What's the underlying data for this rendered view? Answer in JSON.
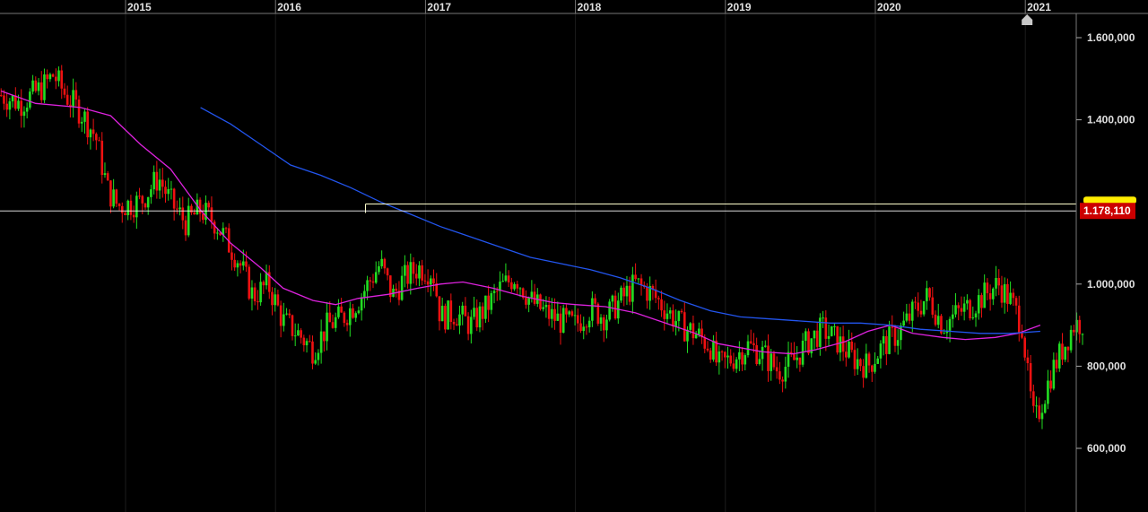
{
  "chart_data": {
    "type": "candlestick",
    "title": "",
    "xlabel": "",
    "ylabel": "",
    "x_range": [
      2014.17,
      2021.42
    ],
    "ylim": [
      450000,
      1680000
    ],
    "grid": true,
    "x_ticks": [
      {
        "value": 2015,
        "label": "2015"
      },
      {
        "value": 2016,
        "label": "2016"
      },
      {
        "value": 2017,
        "label": "2017"
      },
      {
        "value": 2018,
        "label": "2018"
      },
      {
        "value": 2019,
        "label": "2019"
      },
      {
        "value": 2020,
        "label": "2020"
      },
      {
        "value": 2021,
        "label": "2021"
      }
    ],
    "y_ticks": [
      {
        "value": 1600000,
        "label": "1.600,000"
      },
      {
        "value": 1400000,
        "label": "1.400,000"
      },
      {
        "value": 1000000,
        "label": "1.000,000"
      },
      {
        "value": 800000,
        "label": "800,000"
      },
      {
        "value": 600000,
        "label": "600,000"
      }
    ],
    "colors": {
      "up": "#22dd22",
      "down": "#ee1111",
      "ma_short": "#dd22dd",
      "ma_long": "#2255ee",
      "grid": "#1c1c1c",
      "price_line": "#ffffff",
      "resistance_line": "#ffffcc",
      "price_tag": "#cc0000",
      "tag_highlight": "#ffee00"
    },
    "last_price": {
      "value": 1178110,
      "label": "1.178,110"
    },
    "resistance": {
      "value": 1195000,
      "from": 2016.6,
      "to": 2021.2
    },
    "series": [
      {
        "type": "line",
        "points": [
          [
            2014.17,
            1470000
          ],
          [
            2014.4,
            1440000
          ],
          [
            2014.7,
            1430000
          ],
          [
            2014.9,
            1410000
          ],
          [
            2015.1,
            1340000
          ],
          [
            2015.3,
            1280000
          ],
          [
            2015.5,
            1180000
          ],
          [
            2015.7,
            1100000
          ],
          [
            2015.9,
            1040000
          ],
          [
            2016.05,
            990000
          ],
          [
            2016.25,
            960000
          ],
          [
            2016.4,
            950000
          ],
          [
            2016.55,
            965000
          ],
          [
            2016.75,
            975000
          ],
          [
            2016.95,
            990000
          ],
          [
            2017.1,
            1000000
          ],
          [
            2017.25,
            1005000
          ],
          [
            2017.45,
            990000
          ],
          [
            2017.65,
            970000
          ],
          [
            2017.85,
            955000
          ],
          [
            2018.0,
            950000
          ],
          [
            2018.2,
            945000
          ],
          [
            2018.4,
            930000
          ],
          [
            2018.6,
            905000
          ],
          [
            2018.8,
            880000
          ],
          [
            2018.95,
            855000
          ],
          [
            2019.1,
            845000
          ],
          [
            2019.25,
            835000
          ],
          [
            2019.45,
            830000
          ],
          [
            2019.6,
            840000
          ],
          [
            2019.8,
            860000
          ],
          [
            2019.95,
            885000
          ],
          [
            2020.1,
            900000
          ],
          [
            2020.25,
            880000
          ],
          [
            2020.45,
            870000
          ],
          [
            2020.6,
            865000
          ],
          [
            2020.8,
            870000
          ],
          [
            2020.95,
            880000
          ],
          [
            2021.1,
            900000
          ]
        ]
      },
      {
        "type": "line",
        "points": [
          [
            2015.5,
            1430000
          ],
          [
            2015.7,
            1390000
          ],
          [
            2015.9,
            1340000
          ],
          [
            2016.1,
            1290000
          ],
          [
            2016.3,
            1265000
          ],
          [
            2016.5,
            1235000
          ],
          [
            2016.7,
            1200000
          ],
          [
            2016.9,
            1170000
          ],
          [
            2017.1,
            1140000
          ],
          [
            2017.3,
            1115000
          ],
          [
            2017.5,
            1090000
          ],
          [
            2017.7,
            1065000
          ],
          [
            2017.9,
            1050000
          ],
          [
            2018.1,
            1035000
          ],
          [
            2018.3,
            1015000
          ],
          [
            2018.5,
            990000
          ],
          [
            2018.7,
            960000
          ],
          [
            2018.9,
            935000
          ],
          [
            2019.1,
            920000
          ],
          [
            2019.3,
            915000
          ],
          [
            2019.5,
            910000
          ],
          [
            2019.7,
            905000
          ],
          [
            2019.9,
            905000
          ],
          [
            2020.1,
            900000
          ],
          [
            2020.3,
            890000
          ],
          [
            2020.5,
            885000
          ],
          [
            2020.7,
            880000
          ],
          [
            2020.9,
            880000
          ],
          [
            2021.1,
            885000
          ]
        ]
      }
    ],
    "price_path": [
      [
        2014.17,
        1460000
      ],
      [
        2014.3,
        1440000
      ],
      [
        2014.45,
        1480000
      ],
      [
        2014.52,
        1510000
      ],
      [
        2014.6,
        1460000
      ],
      [
        2014.7,
        1420000
      ],
      [
        2014.8,
        1360000
      ],
      [
        2014.88,
        1230000
      ],
      [
        2014.95,
        1190000
      ],
      [
        2015.1,
        1200000
      ],
      [
        2015.22,
        1260000
      ],
      [
        2015.3,
        1200000
      ],
      [
        2015.4,
        1150000
      ],
      [
        2015.5,
        1180000
      ],
      [
        2015.6,
        1150000
      ],
      [
        2015.75,
        1060000
      ],
      [
        2015.85,
        970000
      ],
      [
        2015.95,
        1000000
      ],
      [
        2016.05,
        910000
      ],
      [
        2016.15,
        880000
      ],
      [
        2016.25,
        840000
      ],
      [
        2016.35,
        900000
      ],
      [
        2016.45,
        920000
      ],
      [
        2016.55,
        960000
      ],
      [
        2016.7,
        1050000
      ],
      [
        2016.78,
        970000
      ],
      [
        2016.85,
        1010000
      ],
      [
        2016.95,
        1040000
      ],
      [
        2017.05,
        1030000
      ],
      [
        2017.1,
        920000
      ],
      [
        2017.2,
        930000
      ],
      [
        2017.3,
        900000
      ],
      [
        2017.4,
        940000
      ],
      [
        2017.5,
        990000
      ],
      [
        2017.6,
        1020000
      ],
      [
        2017.7,
        960000
      ],
      [
        2017.8,
        930000
      ],
      [
        2017.9,
        910000
      ],
      [
        2018.0,
        900000
      ],
      [
        2018.1,
        940000
      ],
      [
        2018.2,
        920000
      ],
      [
        2018.3,
        960000
      ],
      [
        2018.4,
        1000000
      ],
      [
        2018.5,
        980000
      ],
      [
        2018.6,
        940000
      ],
      [
        2018.7,
        900000
      ],
      [
        2018.8,
        880000
      ],
      [
        2018.9,
        850000
      ],
      [
        2018.95,
        800000
      ],
      [
        2019.05,
        820000
      ],
      [
        2019.15,
        850000
      ],
      [
        2019.25,
        830000
      ],
      [
        2019.35,
        790000
      ],
      [
        2019.45,
        810000
      ],
      [
        2019.55,
        860000
      ],
      [
        2019.65,
        890000
      ],
      [
        2019.75,
        860000
      ],
      [
        2019.85,
        820000
      ],
      [
        2019.95,
        800000
      ],
      [
        2020.05,
        850000
      ],
      [
        2020.15,
        880000
      ],
      [
        2020.25,
        930000
      ],
      [
        2020.35,
        970000
      ],
      [
        2020.45,
        900000
      ],
      [
        2020.55,
        930000
      ],
      [
        2020.65,
        950000
      ],
      [
        2020.75,
        980000
      ],
      [
        2020.82,
        1000000
      ],
      [
        2020.9,
        960000
      ],
      [
        2020.98,
        900000
      ],
      [
        2021.02,
        760000
      ],
      [
        2021.06,
        660000
      ],
      [
        2021.1,
        700000
      ],
      [
        2021.18,
        790000
      ],
      [
        2021.26,
        850000
      ],
      [
        2021.32,
        900000
      ],
      [
        2021.4,
        910000
      ]
    ]
  }
}
